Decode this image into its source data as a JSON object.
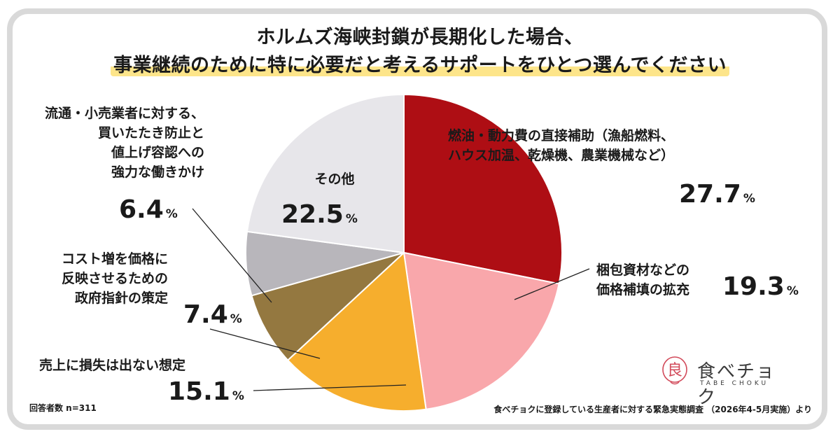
{
  "title_line1": "ホルムズ海峡封鎖が長期化した場合、",
  "title_line2": "事業継続のために特に必要だと考えるサポートをひとつ選んでください",
  "chart_data": {
    "type": "pie",
    "unit": "%",
    "slices": [
      {
        "label": "燃油・動力費の直接補助（漁船燃料、ハウス加温、乾燥機、農業機械など）",
        "label_lines": [
          "燃油・動力費の直接補助（漁船燃料、",
          "ハウス加温、乾燥機、農業機械など）"
        ],
        "value": 27.7,
        "value_text": "27.7",
        "color": "#ae0e14"
      },
      {
        "label": "梱包資材などの価格補填の拡充",
        "label_lines": [
          "梱包資材などの",
          "価格補填の拡充"
        ],
        "value": 19.3,
        "value_text": "19.3",
        "color": "#f9a7ab"
      },
      {
        "label": "売上に損失は出ない想定",
        "label_lines": [
          "売上に損失は出ない想定"
        ],
        "value": 15.1,
        "value_text": "15.1",
        "color": "#f6ae2d"
      },
      {
        "label": "コスト増を価格に反映させるための政府指針の策定",
        "label_lines": [
          "コスト増を価格に",
          "反映させるための",
          "政府指針の策定"
        ],
        "value": 7.4,
        "value_text": "7.4",
        "color": "#947840"
      },
      {
        "label": "流通・小売業者に対する、買いたたき防止と値上げ容認への強力な働きかけ",
        "label_lines": [
          "流通・小売業者に対する、",
          "買いたたき防止と",
          "値上げ容認への",
          "強力な働きかけ"
        ],
        "value": 6.4,
        "value_text": "6.4",
        "color": "#b8b6bb"
      },
      {
        "label": "その他",
        "label_lines": [
          "その他"
        ],
        "value": 22.5,
        "value_text": "22.5",
        "color": "#e7e6ea"
      }
    ]
  },
  "footer_left": "回答者数 n=311",
  "footer_right": "食べチョクに登録している生産者に対する緊急実態調査 （2026年4-5月実施）より",
  "logo_text": "食べチョク",
  "logo_sub": "TABE CHOKU",
  "logo_mark": "良"
}
